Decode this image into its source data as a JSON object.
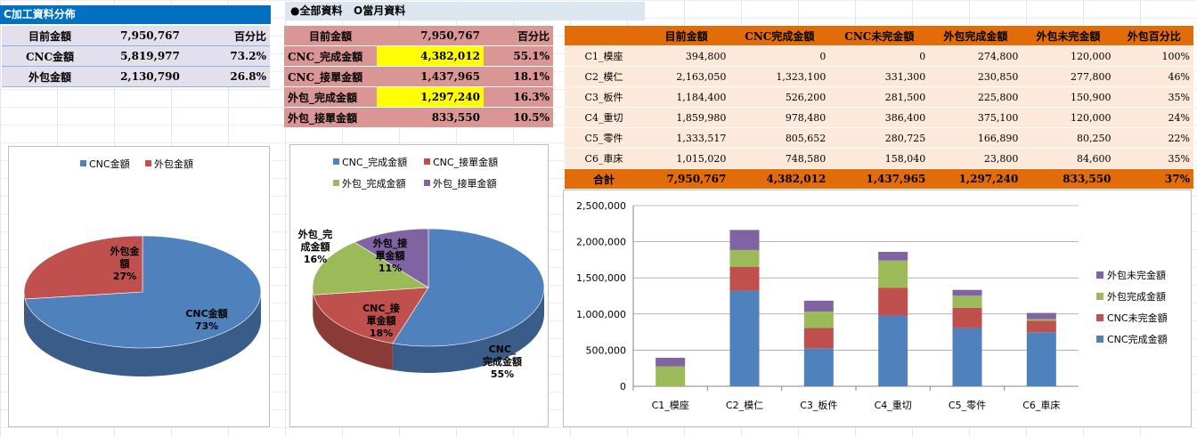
{
  "header": {
    "title": "C加工資料分佈",
    "radio_all": "全部資料",
    "radio_month": "當月資料"
  },
  "summary1": {
    "headers": [
      "目前金額",
      "7,950,767",
      "百分比"
    ],
    "rows": [
      [
        "CNC金額",
        "5,819,977",
        "73.2%"
      ],
      [
        "外包金額",
        "2,130,790",
        "26.8%"
      ]
    ]
  },
  "summary2": {
    "headers": [
      "目前金額",
      "7,950,767",
      "百分比"
    ],
    "rows": [
      [
        "CNC_完成金額",
        "4,382,012",
        "55.1%"
      ],
      [
        "CNC_接單金額",
        "1,437,965",
        "18.1%"
      ],
      [
        "外包_完成金額",
        "1,297,240",
        "16.3%"
      ],
      [
        "外包_接單金額",
        "833,550",
        "10.5%"
      ]
    ]
  },
  "detail": {
    "headers": [
      "",
      "目前金額",
      "CNC完成金額",
      "CNC未完金額",
      "外包完成金額",
      "外包未完金額",
      "外包百分比"
    ],
    "rows": [
      [
        "C1_模座",
        "394,800",
        "0",
        "0",
        "274,800",
        "120,000",
        "100%"
      ],
      [
        "C2_模仁",
        "2,163,050",
        "1,323,100",
        "331,300",
        "230,850",
        "277,800",
        "46%"
      ],
      [
        "C3_板件",
        "1,184,400",
        "526,200",
        "281,500",
        "225,800",
        "150,900",
        "35%"
      ],
      [
        "C4_重切",
        "1,859,980",
        "978,480",
        "386,400",
        "375,100",
        "120,000",
        "24%"
      ],
      [
        "C5_零件",
        "1,333,517",
        "805,652",
        "280,725",
        "166,890",
        "80,250",
        "22%"
      ],
      [
        "C6_車床",
        "1,015,020",
        "748,580",
        "158,040",
        "23,800",
        "84,600",
        "35%"
      ]
    ],
    "total": [
      "合計",
      "7,950,767",
      "4,382,012",
      "1,437,965",
      "1,297,240",
      "833,550",
      "37%"
    ]
  },
  "colors": {
    "blue": "#4f81bd",
    "red": "#c0504d",
    "green": "#9bbb59",
    "purple": "#8064a2"
  },
  "chart_data": [
    {
      "type": "pie",
      "legend": [
        "CNC金額",
        "外包金額"
      ],
      "labels": [
        "CNC金額",
        "外包金額"
      ],
      "values": [
        73,
        27
      ],
      "value_labels": [
        "73%",
        "27%"
      ],
      "legend_position": "top"
    },
    {
      "type": "pie",
      "legend": [
        "CNC_完成金額",
        "CNC_接單金額",
        "外包_完成金額",
        "外包_接單金額"
      ],
      "labels": [
        "CNC_完成金額",
        "CNC_接單金額",
        "外包_完成金額",
        "外包_接單金額"
      ],
      "values": [
        55,
        18,
        16,
        11
      ],
      "value_labels": [
        "55%",
        "18%",
        "16%",
        "11%"
      ],
      "legend_position": "top"
    },
    {
      "type": "bar",
      "stacked": true,
      "categories": [
        "C1_模座",
        "C2_模仁",
        "C3_板件",
        "C4_重切",
        "C5_零件",
        "C6_車床"
      ],
      "series": [
        {
          "name": "CNC完成金額",
          "values": [
            0,
            1323100,
            526200,
            978480,
            805652,
            748580
          ]
        },
        {
          "name": "CNC未完金額",
          "values": [
            0,
            331300,
            281500,
            386400,
            280725,
            158040
          ]
        },
        {
          "name": "外包完成金額",
          "values": [
            274800,
            230850,
            225800,
            375100,
            166890,
            23800
          ]
        },
        {
          "name": "外包未完金額",
          "values": [
            120000,
            277800,
            150900,
            120000,
            80250,
            84600
          ]
        }
      ],
      "yticks": [
        "0",
        "500,000",
        "1,000,000",
        "1,500,000",
        "2,000,000",
        "2,500,000"
      ],
      "ylim": [
        0,
        2500000
      ],
      "grid": true,
      "legend_position": "right"
    }
  ]
}
